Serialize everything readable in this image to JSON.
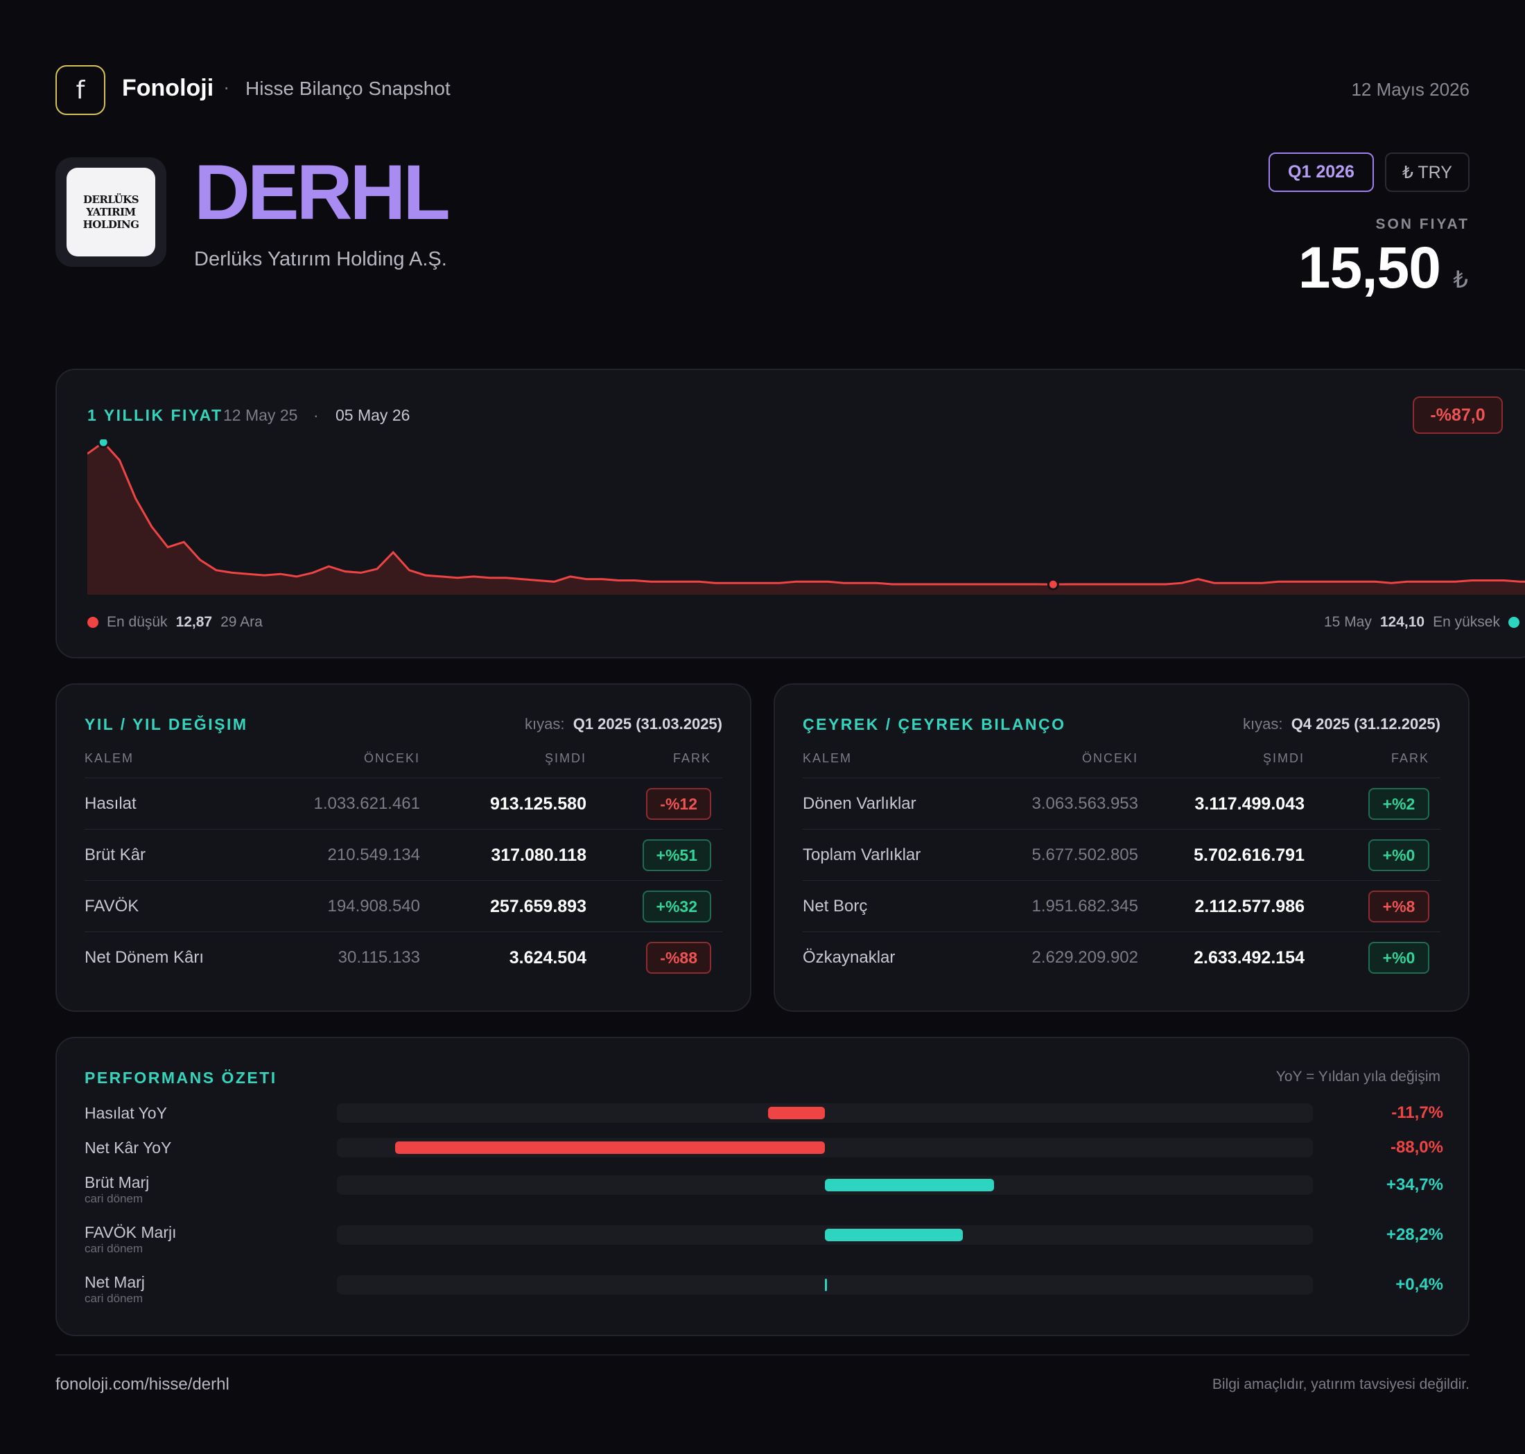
{
  "header": {
    "logo_letter": "f",
    "brand": "Fonoloji",
    "separator": "·",
    "subtitle": "Hisse Bilanço Snapshot",
    "date": "12 Mayıs 2026"
  },
  "company": {
    "logo_text": "DERLÜKS YATIRIM HOLDING",
    "ticker": "DERHL",
    "name": "Derlüks Yatırım Holding A.Ş.",
    "period": "Q1 2026",
    "currency": "₺ TRY",
    "price_label": "SON FIYAT",
    "price": "15,50",
    "price_currency": "₺"
  },
  "price_chart": {
    "title": "1 YILLIK FIYAT",
    "start_date": "12 May 25",
    "dot": "·",
    "end_date": "05 May 26",
    "change": "-%87,0",
    "low_label": "En düşük",
    "low_value": "12,87",
    "low_date": "29 Ara",
    "high_date": "15 May",
    "high_value": "124,10",
    "high_label": "En yüksek"
  },
  "chart_data": {
    "type": "area",
    "x_range": [
      "12 May 25",
      "05 May 26"
    ],
    "ylim": [
      12.87,
      124.1
    ],
    "min": {
      "value": 12.87,
      "date": "29 Ara"
    },
    "max": {
      "value": 124.1,
      "date": "15 May"
    },
    "series": [
      {
        "color": "#ef4444",
        "values": [
          115,
          124,
          110,
          80,
          58,
          42,
          46,
          32,
          24,
          22,
          21,
          20,
          21,
          19,
          22,
          27,
          23,
          22,
          25,
          38,
          24,
          20,
          19,
          18,
          19,
          18,
          18,
          17,
          16,
          15,
          19,
          17,
          17,
          16,
          16,
          15,
          15,
          15,
          15,
          14,
          14,
          14,
          14,
          14,
          15,
          15,
          15,
          14,
          14,
          14,
          13,
          13,
          13,
          13,
          13,
          13,
          13,
          13,
          13,
          13,
          12.87,
          13,
          13,
          13,
          13,
          13,
          13,
          13,
          14,
          17,
          14,
          14,
          14,
          14,
          15,
          15,
          15,
          15,
          15,
          15,
          15,
          14,
          15,
          15,
          15,
          15,
          16,
          16,
          16,
          15,
          15
        ]
      }
    ]
  },
  "yoy": {
    "title": "YIL / YIL DEĞIŞIM",
    "kiyas_label": "kıyas:",
    "kiyas_value": "Q1 2025 (31.03.2025)",
    "headers": {
      "name": "KALEM",
      "prev": "ÖNCEKI",
      "now": "ŞIMDI",
      "diff": "FARK"
    },
    "rows": [
      {
        "name": "Hasılat",
        "prev": "1.033.621.461",
        "now": "913.125.580",
        "diff": "-%12",
        "tone": "neg"
      },
      {
        "name": "Brüt Kâr",
        "prev": "210.549.134",
        "now": "317.080.118",
        "diff": "+%51",
        "tone": "pos"
      },
      {
        "name": "FAVÖK",
        "prev": "194.908.540",
        "now": "257.659.893",
        "diff": "+%32",
        "tone": "pos"
      },
      {
        "name": "Net Dönem Kârı",
        "prev": "30.115.133",
        "now": "3.624.504",
        "diff": "-%88",
        "tone": "neg"
      }
    ]
  },
  "qoq": {
    "title": "ÇEYREK / ÇEYREK BILANÇO",
    "kiyas_label": "kıyas:",
    "kiyas_value": "Q4 2025 (31.12.2025)",
    "headers": {
      "name": "KALEM",
      "prev": "ÖNCEKI",
      "now": "ŞIMDI",
      "diff": "FARK"
    },
    "rows": [
      {
        "name": "Dönen Varlıklar",
        "prev": "3.063.563.953",
        "now": "3.117.499.043",
        "diff": "+%2",
        "tone": "pos"
      },
      {
        "name": "Toplam Varlıklar",
        "prev": "5.677.502.805",
        "now": "5.702.616.791",
        "diff": "+%0",
        "tone": "pos"
      },
      {
        "name": "Net Borç",
        "prev": "1.951.682.345",
        "now": "2.112.577.986",
        "diff": "+%8",
        "tone": "neg"
      },
      {
        "name": "Özkaynaklar",
        "prev": "2.629.209.902",
        "now": "2.633.492.154",
        "diff": "+%0",
        "tone": "pos"
      }
    ]
  },
  "performance": {
    "title": "PERFORMANS ÖZETI",
    "note": "YoY = Yıldan yıla değişim",
    "rows": [
      {
        "label": "Hasılat YoY",
        "sub": "",
        "value": -11.7,
        "text": "-11,7%",
        "color": "#ef4444"
      },
      {
        "label": "Net Kâr YoY",
        "sub": "",
        "value": -88.0,
        "text": "-88,0%",
        "color": "#ef4444"
      },
      {
        "label": "Brüt Marj",
        "sub": "cari dönem",
        "value": 34.7,
        "text": "+34,7%",
        "color": "#2dd4bf"
      },
      {
        "label": "FAVÖK Marjı",
        "sub": "cari dönem",
        "value": 28.2,
        "text": "+28,2%",
        "color": "#2dd4bf"
      },
      {
        "label": "Net Marj",
        "sub": "cari dönem",
        "value": 0.4,
        "text": "+0,4%",
        "color": "#2dd4bf"
      }
    ]
  },
  "footer": {
    "url": "fonoloji.com/hisse/derhl",
    "disclaimer": "Bilgi amaçlıdır, yatırım tavsiyesi değildir."
  }
}
